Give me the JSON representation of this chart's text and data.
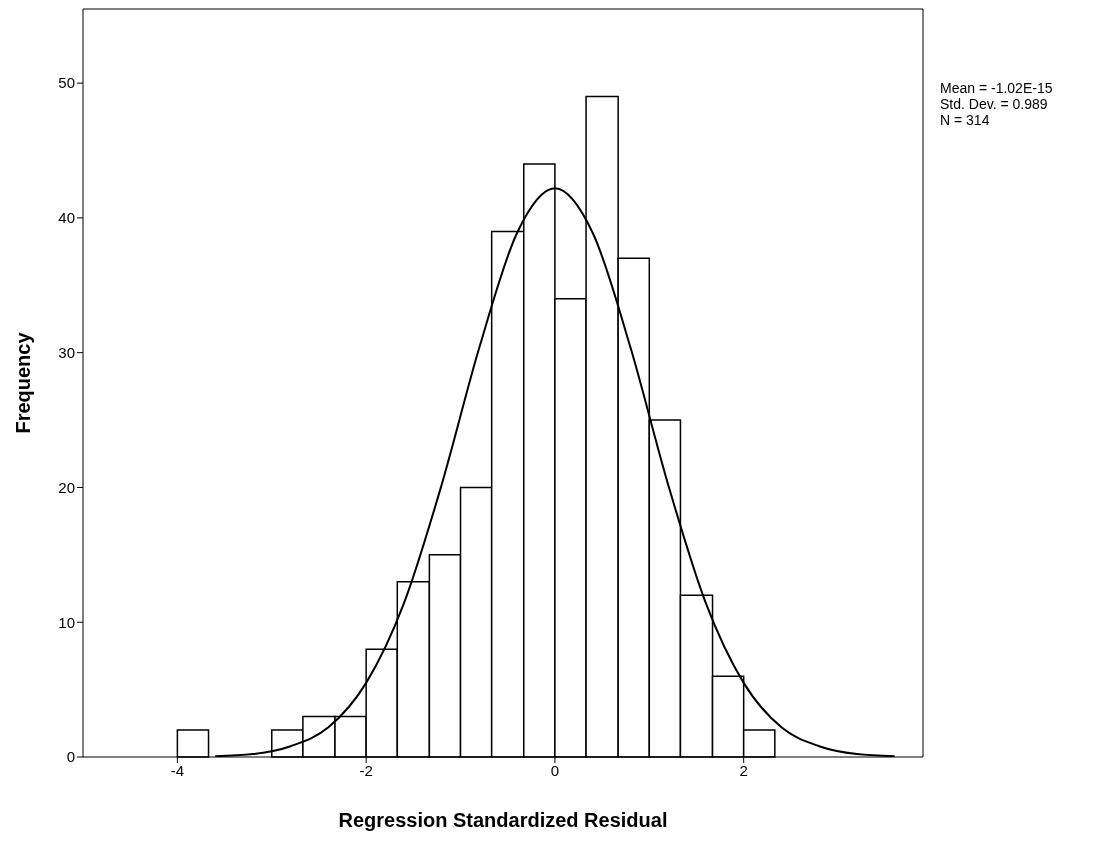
{
  "chart_data": {
    "type": "histogram",
    "xlabel": "Regression Standardized Residual",
    "ylabel": "Frequency",
    "bins": [
      -4,
      -3.67,
      -3,
      -2.67,
      -2.33,
      -2,
      -1.67,
      -1.33,
      -1,
      -0.67,
      -0.33,
      0,
      0.33,
      0.67,
      1,
      1.33,
      1.67,
      2,
      2.33
    ],
    "values": [
      2,
      0,
      2,
      3,
      3,
      8,
      13,
      15,
      20,
      39,
      44,
      34,
      49,
      37,
      25,
      12,
      6,
      2
    ],
    "color": "#ffffff",
    "series": [
      {
        "type": "line",
        "color": "#000000",
        "x": [
          -3.6,
          -3.2,
          -2.8,
          -2.4,
          -2.0,
          -1.6,
          -1.2,
          -0.8,
          -0.4,
          0,
          0.4,
          0.8,
          1.2,
          1.6,
          2.0,
          2.4,
          2.8,
          3.2,
          3.6
        ],
        "values": [
          0.06,
          0.22,
          0.8,
          2.2,
          5.5,
          11.4,
          20.2,
          30.4,
          38.9,
          42.2,
          38.9,
          30.4,
          20.2,
          11.4,
          5.5,
          2.2,
          0.8,
          0.22,
          0.06
        ]
      }
    ],
    "xlim": [
      -5,
      3.9
    ],
    "xticks": [
      -4,
      -2,
      0,
      2
    ],
    "ylim": [
      0,
      55.5
    ],
    "yticks": [
      0,
      10,
      20,
      30,
      40,
      50
    ],
    "annotations": [
      "Mean = -1.02E-15",
      "Std. Dev. = 0.989",
      "N = 314"
    ]
  }
}
